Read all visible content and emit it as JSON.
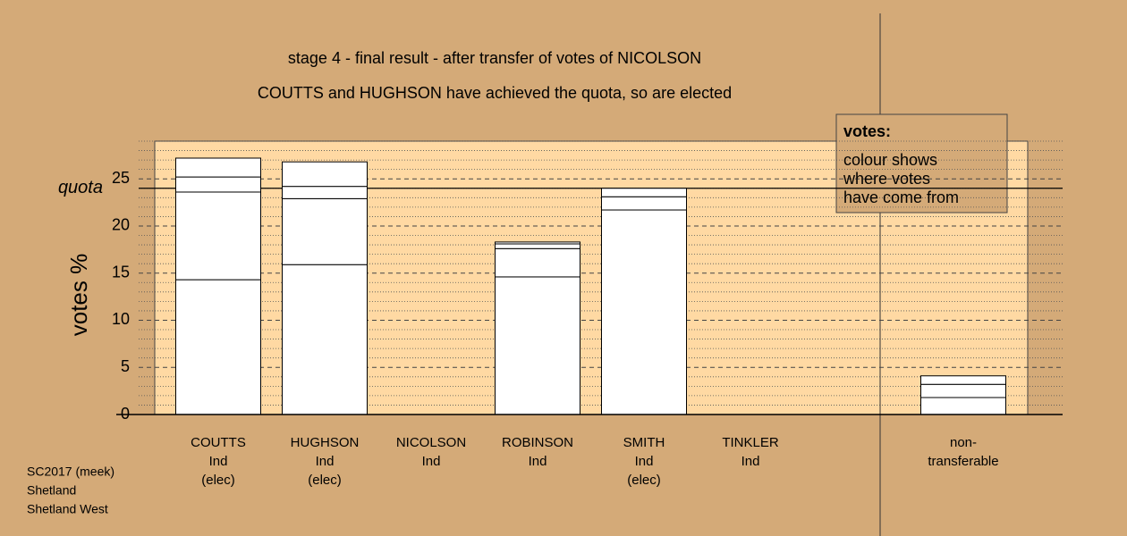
{
  "chart_data": {
    "type": "stacked_bar",
    "title": "stage 4 - final result - after transfer of votes of NICOLSON",
    "subtitle": "COUTTS and HUGHSON have achieved the quota, so are elected",
    "y_label": "votes %",
    "categories": [
      [
        "COUTTS",
        "Ind",
        "(elec)"
      ],
      [
        "HUGHSON",
        "Ind",
        "(elec)"
      ],
      [
        "NICOLSON",
        "Ind"
      ],
      [
        "ROBINSON",
        "Ind"
      ],
      [
        "SMITH",
        "Ind",
        "(elec)"
      ],
      [
        "TINKLER",
        "Ind"
      ],
      [
        "non-",
        "transferable"
      ]
    ],
    "series": [
      {
        "color": "#ffffff",
        "values": [
          14.3,
          15.9,
          0,
          14.6,
          21.7,
          0,
          1.8
        ]
      },
      {
        "color": "#ffffff",
        "values": [
          9.3,
          7.0,
          0,
          3.0,
          1.4,
          0,
          1.4
        ]
      },
      {
        "color": "#ffffff",
        "values": [
          1.6,
          1.3,
          0,
          0.5,
          0.9,
          0,
          0.9
        ]
      },
      {
        "color": "#ffffff",
        "values": [
          2.0,
          2.6,
          0,
          0.2,
          0,
          0,
          0
        ]
      }
    ],
    "quota": {
      "value": 24.0,
      "label": "quota"
    },
    "ylim": [
      0,
      29
    ],
    "yticks": [
      0,
      5,
      10,
      15,
      20,
      25
    ],
    "minor_yticks": [
      1,
      2,
      3,
      4,
      6,
      7,
      8,
      9,
      11,
      12,
      13,
      14,
      16,
      17,
      18,
      19,
      21,
      22,
      23,
      24,
      26,
      27,
      28,
      29
    ],
    "legend": {
      "title": "votes:",
      "lines": [
        "colour shows",
        "where votes",
        "have come from"
      ]
    },
    "notes": [
      "SC2017 (meek)",
      "Shetland",
      "Shetland West"
    ]
  }
}
